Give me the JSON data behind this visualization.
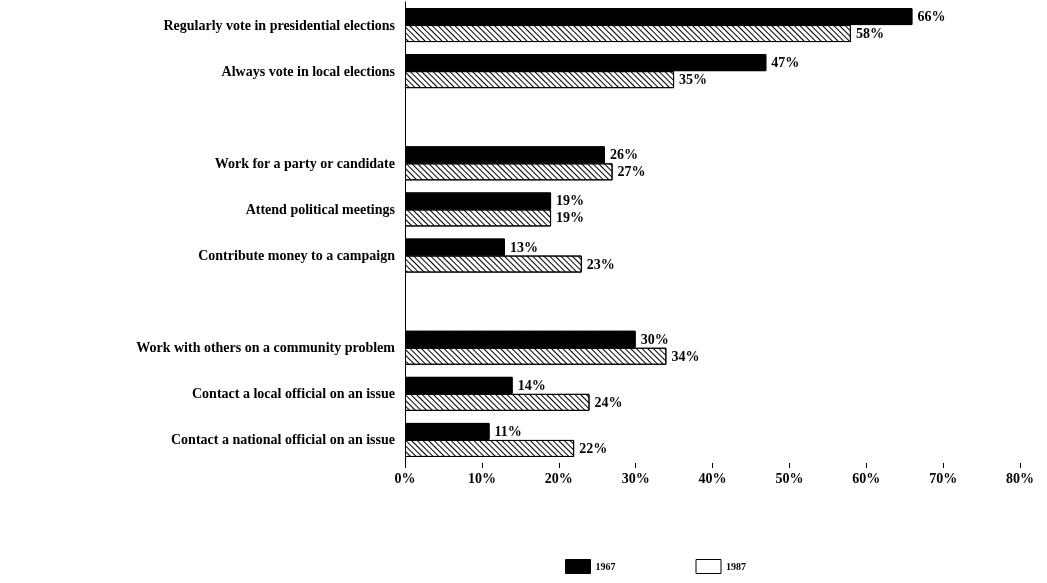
{
  "chart_data": {
    "type": "bar",
    "orientation": "horizontal",
    "categories": [
      "Regularly vote in presidential elections",
      "Always vote in local elections",
      null,
      "Work for a party or candidate",
      "Attend political meetings",
      "Contribute money to a campaign",
      null,
      "Work with others on a community problem",
      "Contact a local official on an issue",
      "Contact a national official on an issue"
    ],
    "series": [
      {
        "name": "1967",
        "color": "#000000",
        "values": [
          66,
          47,
          null,
          26,
          19,
          13,
          null,
          30,
          14,
          11
        ],
        "value_labels": [
          "66%",
          "47%",
          null,
          "26%",
          "19%",
          "13%",
          null,
          "30%",
          "14%",
          "11%"
        ]
      },
      {
        "name": "1987",
        "color": "#ffffff",
        "values": [
          58,
          35,
          null,
          27,
          19,
          23,
          null,
          34,
          24,
          22
        ],
        "value_labels": [
          "58%",
          "35%",
          null,
          "27%",
          "19%",
          "23%",
          null,
          "34%",
          "24%",
          "22%"
        ]
      }
    ],
    "xlim": [
      0,
      80
    ],
    "xticks": [
      {
        "value": 0,
        "label": "0%"
      },
      {
        "value": 10,
        "label": "10%"
      },
      {
        "value": 20,
        "label": "20%"
      },
      {
        "value": 30,
        "label": "30%"
      },
      {
        "value": 40,
        "label": "40%"
      },
      {
        "value": 50,
        "label": "50%"
      },
      {
        "value": 60,
        "label": "60%"
      },
      {
        "value": 70,
        "label": "70%"
      },
      {
        "value": 80,
        "label": "80%"
      }
    ],
    "grid": false,
    "legend": "bottom"
  }
}
